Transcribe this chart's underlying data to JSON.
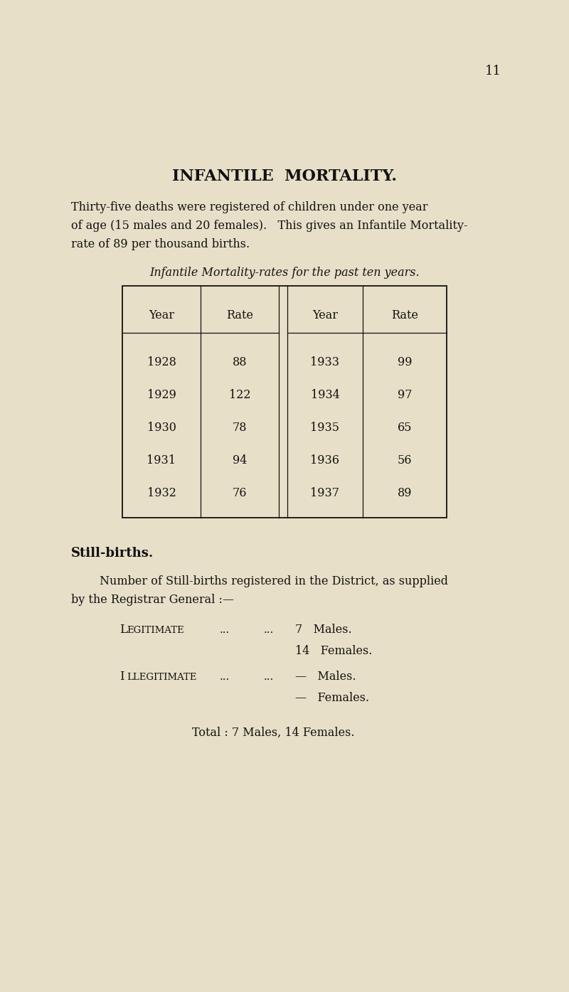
{
  "background_color": "#e8dfc8",
  "page_number": "11",
  "title": "INFANTILE  MORTALITY.",
  "intro_text_line1": "Thirty-five deaths were registered of children under one year",
  "intro_text_line2": "of age (15 males and 20 females).   This gives an Infantile Mortality-",
  "intro_text_line3": "rate of 89 per thousand births.",
  "table_caption": "Infantile Mortality-rates for the past ten years.",
  "table_headers": [
    "Year",
    "Rate",
    "Year",
    "Rate"
  ],
  "table_data": [
    [
      "1928",
      "88",
      "1933",
      "99"
    ],
    [
      "1929",
      "122",
      "1934",
      "97"
    ],
    [
      "1930",
      "78",
      "1935",
      "65"
    ],
    [
      "1931",
      "94",
      "1936",
      "56"
    ],
    [
      "1932",
      "76",
      "1937",
      "89"
    ]
  ],
  "still_births_heading": "Still-births.",
  "still_births_text1": "Number of Still-births registered in the District, as supplied",
  "still_births_text2": "by the Registrar General :—",
  "legitimate_label_cap": "L",
  "legitimate_label_rest": "EGITIMATE",
  "illegitimate_label_cap": "I",
  "illegitimate_label_rest": "LLEGITIMATE",
  "dots": "...          ...",
  "legitimate_males": "7   Males.",
  "legitimate_females": "14   Females.",
  "illegitimate_males": "—   Males.",
  "illegitimate_females": "—   Females.",
  "total_text": "Total : 7 Males, 14 Females."
}
